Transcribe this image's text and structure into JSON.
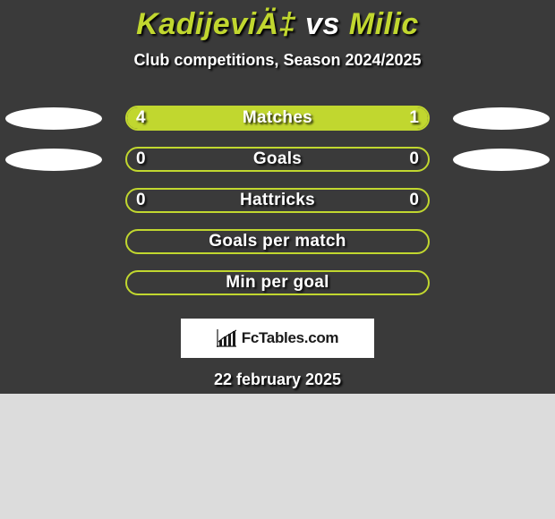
{
  "colors": {
    "panel_bg": "#3a3a3a",
    "accent": "#c1d72f",
    "page_bg": "#dcdcdc",
    "text": "#ffffff",
    "shadow": "#000000",
    "ellipse": "#ffffff"
  },
  "typography": {
    "title_fontsize": 34,
    "subtitle_fontsize": 18,
    "bar_label_fontsize": 19,
    "date_fontsize": 18
  },
  "header": {
    "player_left": "KadijeviÄ‡",
    "vs": " vs ",
    "player_right": "Milic",
    "subtitle": "Club competitions, Season 2024/2025"
  },
  "stats": {
    "bar_track_width": 340,
    "bar_track_height": 28,
    "ellipse_width": 108,
    "ellipse_height": 25,
    "rows": [
      {
        "label": "Matches",
        "left_value": "4",
        "right_value": "1",
        "left_fill_pct": 80,
        "right_fill_pct": 20,
        "show_left_ellipse": true,
        "show_right_ellipse": true
      },
      {
        "label": "Goals",
        "left_value": "0",
        "right_value": "0",
        "left_fill_pct": 0,
        "right_fill_pct": 0,
        "show_left_ellipse": true,
        "show_right_ellipse": true
      },
      {
        "label": "Hattricks",
        "left_value": "0",
        "right_value": "0",
        "left_fill_pct": 0,
        "right_fill_pct": 0,
        "show_left_ellipse": false,
        "show_right_ellipse": false
      },
      {
        "label": "Goals per match",
        "left_value": "",
        "right_value": "",
        "left_fill_pct": 0,
        "right_fill_pct": 0,
        "show_left_ellipse": false,
        "show_right_ellipse": false
      },
      {
        "label": "Min per goal",
        "left_value": "",
        "right_value": "",
        "left_fill_pct": 0,
        "right_fill_pct": 0,
        "show_left_ellipse": false,
        "show_right_ellipse": false
      }
    ]
  },
  "footer": {
    "logo_text": "FcTables.com",
    "date": "22 february 2025"
  }
}
